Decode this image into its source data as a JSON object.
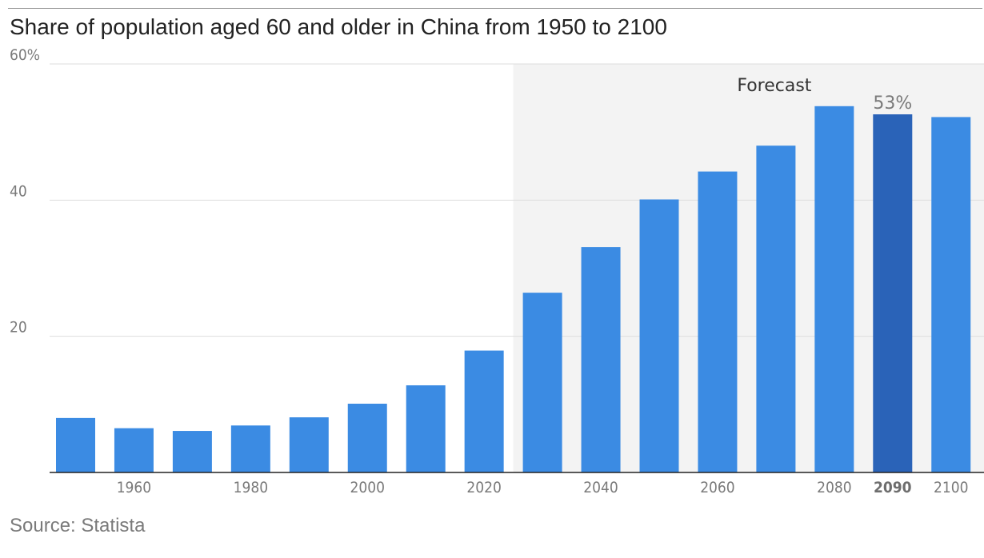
{
  "title": "Share of population aged 60 and older in China from 1950 to 2100",
  "source": "Source: Statista",
  "forecast_label": "Forecast",
  "highlight_label": "53%",
  "colors": {
    "bar": "#3b8be3",
    "bar_highlight": "#2a63b8",
    "forecast_band": "#f3f3f3",
    "grid": "#dddddd",
    "axis": "#222222"
  },
  "chart_data": {
    "type": "bar",
    "categories": [
      "1950",
      "1960",
      "1970",
      "1980",
      "1990",
      "2000",
      "2010",
      "2020",
      "2030",
      "2040",
      "2050",
      "2060",
      "2070",
      "2080",
      "2090",
      "2100"
    ],
    "values": [
      8.0,
      6.5,
      6.1,
      6.9,
      8.1,
      10.1,
      12.8,
      17.9,
      26.4,
      33.1,
      40.1,
      44.2,
      48.0,
      53.8,
      52.6,
      52.2
    ],
    "x_tick_labels": [
      "1960",
      "1980",
      "2000",
      "2020",
      "2040",
      "2060",
      "2080",
      "2090",
      "2100"
    ],
    "y_tick_labels": [
      "20",
      "40",
      "60%"
    ],
    "y_ticks": [
      20,
      40,
      60
    ],
    "ylim": [
      0,
      60
    ],
    "highlight_category": "2090",
    "forecast_start_category": "2030",
    "xlabel": "",
    "ylabel": "",
    "grid": true
  }
}
